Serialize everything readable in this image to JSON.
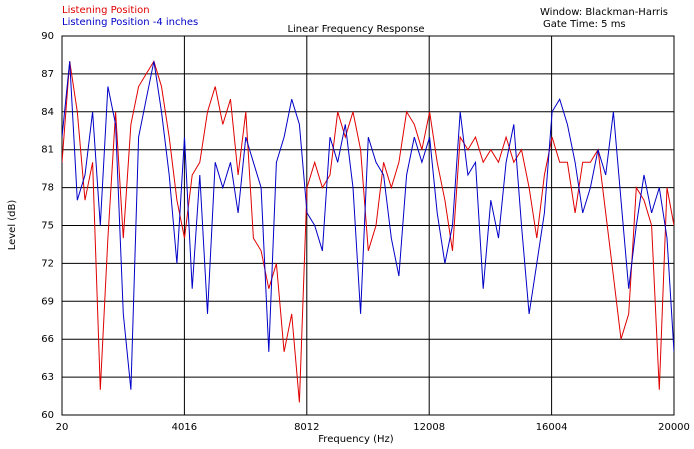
{
  "chart_data": {
    "type": "line",
    "title": "Linear Frequency Response",
    "annotations": [
      "Window: Blackman-Harris",
      "Gate Time: 5 ms"
    ],
    "x_label": "Frequency (Hz)",
    "y_label": "Level (dB)",
    "xlim": [
      20,
      20000
    ],
    "xticks": [
      20,
      4016,
      8012,
      12008,
      16004,
      20000
    ],
    "ylim": [
      60,
      90
    ],
    "yticks": [
      60,
      63,
      66,
      69,
      72,
      75,
      78,
      81,
      84,
      87,
      90
    ],
    "grid": true,
    "x": [
      20,
      270,
      520,
      770,
      1020,
      1270,
      1520,
      1770,
      2020,
      2270,
      2520,
      2770,
      3020,
      3270,
      3520,
      3770,
      4020,
      4270,
      4520,
      4770,
      5020,
      5270,
      5520,
      5770,
      6020,
      6270,
      6520,
      6770,
      7020,
      7270,
      7520,
      7770,
      8020,
      8270,
      8520,
      8770,
      9020,
      9270,
      9520,
      9770,
      10020,
      10270,
      10520,
      10770,
      11020,
      11270,
      11520,
      11770,
      12020,
      12270,
      12520,
      12770,
      13020,
      13270,
      13520,
      13770,
      14020,
      14270,
      14520,
      14770,
      15020,
      15270,
      15520,
      15770,
      16020,
      16270,
      16520,
      16770,
      17020,
      17270,
      17520,
      17770,
      18020,
      18270,
      18520,
      18770,
      19020,
      19270,
      19520,
      19770,
      20000
    ],
    "series": [
      {
        "name": "Listening Position",
        "color": "#e00000",
        "values": [
          80,
          88,
          84,
          77,
          80,
          62,
          74,
          84,
          74,
          83,
          86,
          87,
          88,
          86,
          82,
          77,
          74,
          79,
          80,
          84,
          86,
          83,
          85,
          79,
          84,
          74,
          73,
          70,
          72,
          65,
          68,
          61,
          78,
          80,
          78,
          79,
          84,
          82,
          84,
          81,
          73,
          75,
          80,
          78,
          80,
          84,
          83,
          81,
          84,
          80,
          77,
          73,
          82,
          81,
          82,
          80,
          81,
          80,
          82,
          80,
          81,
          78,
          74,
          79,
          82,
          80,
          80,
          76,
          80,
          80,
          81,
          76,
          71,
          66,
          68,
          78,
          77,
          75,
          62,
          78,
          75
        ]
      },
      {
        "name": "Listening Position -4 inches",
        "color": "#0000c8",
        "values": [
          82,
          88,
          77,
          79,
          84,
          75,
          86,
          83,
          68,
          62,
          82,
          85,
          88,
          84,
          79,
          72,
          82,
          70,
          79,
          68,
          80,
          78,
          80,
          76,
          82,
          80,
          78,
          65,
          80,
          82,
          85,
          83,
          76,
          75,
          73,
          82,
          80,
          83,
          78,
          68,
          82,
          80,
          79,
          74,
          71,
          79,
          82,
          80,
          82,
          76,
          72,
          75,
          84,
          79,
          80,
          70,
          77,
          74,
          80,
          83,
          75,
          68,
          72,
          76,
          84,
          85,
          83,
          80,
          76,
          78,
          81,
          79,
          84,
          77,
          70,
          75,
          79,
          76,
          78,
          74,
          65
        ]
      }
    ]
  }
}
